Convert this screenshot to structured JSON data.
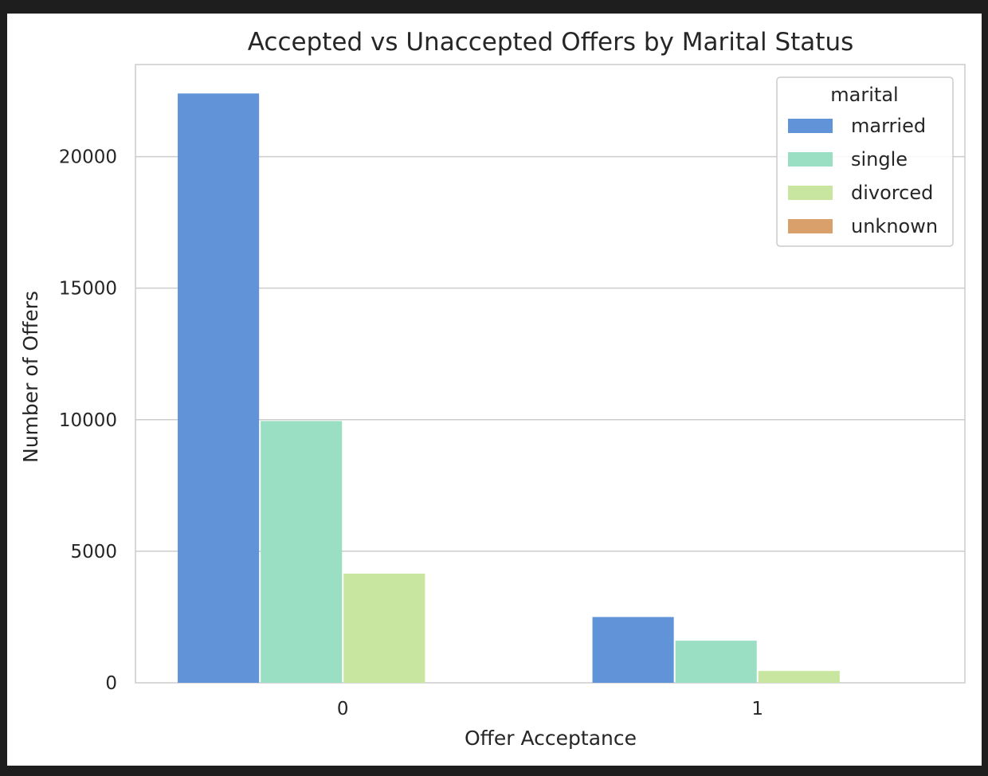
{
  "chart_data": {
    "type": "bar",
    "title": "Accepted vs Unaccepted Offers by Marital Status",
    "xlabel": "Offer Acceptance",
    "ylabel": "Number of Offers",
    "categories": [
      "0",
      "1"
    ],
    "series": [
      {
        "name": "married",
        "values": [
          22400,
          2500
        ],
        "color": "#6193d9"
      },
      {
        "name": "single",
        "values": [
          9950,
          1600
        ],
        "color": "#9adfc4"
      },
      {
        "name": "divorced",
        "values": [
          4150,
          450
        ],
        "color": "#c8e69f"
      },
      {
        "name": "unknown",
        "values": [
          0,
          0
        ],
        "color": "#d9a06c"
      }
    ],
    "yticks": [
      0,
      5000,
      10000,
      15000,
      20000
    ],
    "ylim": [
      0,
      23500
    ],
    "grid": true,
    "legend": {
      "title": "marital",
      "placement": "top-right"
    }
  }
}
